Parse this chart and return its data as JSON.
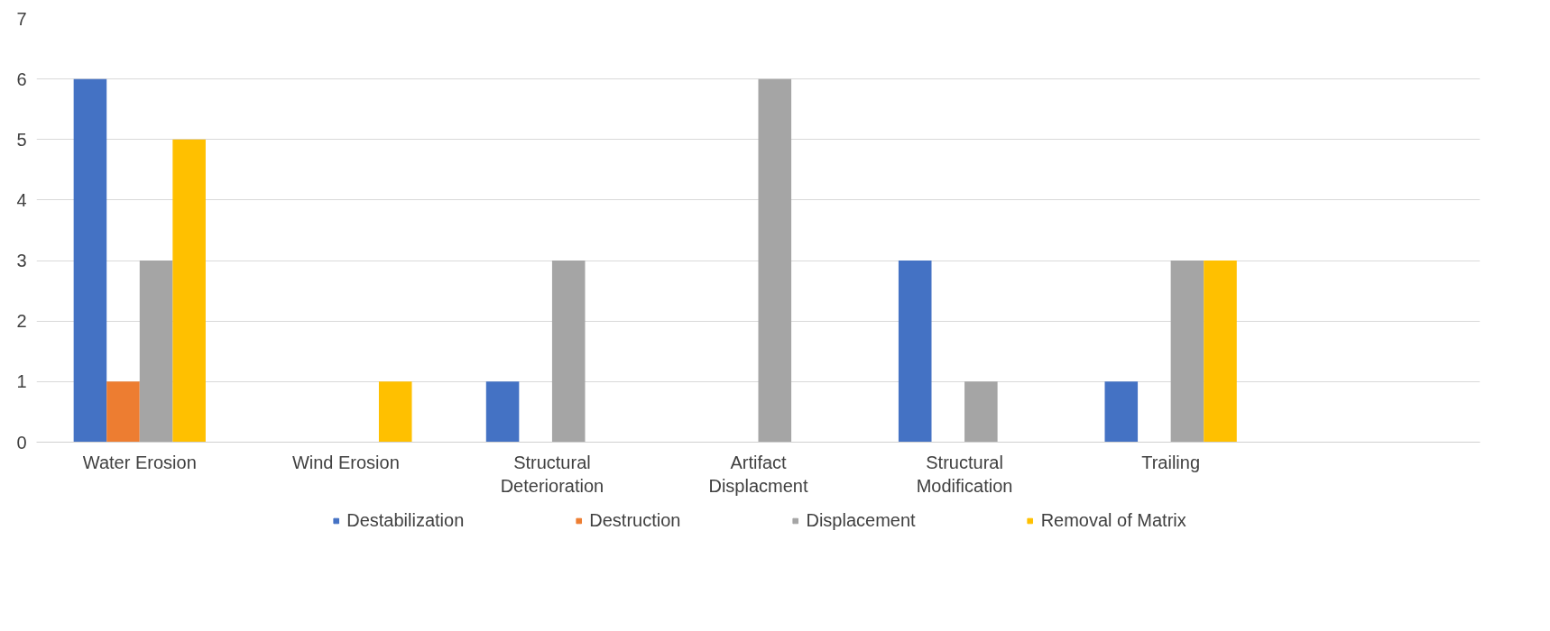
{
  "chart_data": {
    "type": "bar",
    "categories": [
      "Water Erosion",
      "Wind Erosion",
      "Structural Deterioration",
      "Artifact Displacment",
      "Structural Modification",
      "Trailing",
      null
    ],
    "series": [
      {
        "name": "Destabilization",
        "color": "#4472c4",
        "values": [
          6,
          0,
          1,
          0,
          3,
          1,
          null
        ]
      },
      {
        "name": "Destruction",
        "color": "#ed7d31",
        "values": [
          1,
          0,
          0,
          0,
          0,
          0,
          null
        ]
      },
      {
        "name": "Displacement",
        "color": "#a5a5a5",
        "values": [
          3,
          0,
          3,
          6,
          1,
          3,
          null
        ]
      },
      {
        "name": "Removal of Matrix",
        "color": "#ffc000",
        "values": [
          5,
          1,
          0,
          0,
          0,
          3,
          null
        ]
      }
    ],
    "ylim": [
      0,
      7
    ],
    "yticks": [
      0,
      1,
      2,
      3,
      4,
      5,
      6,
      7
    ],
    "grid": "y",
    "legend": "bottom"
  }
}
